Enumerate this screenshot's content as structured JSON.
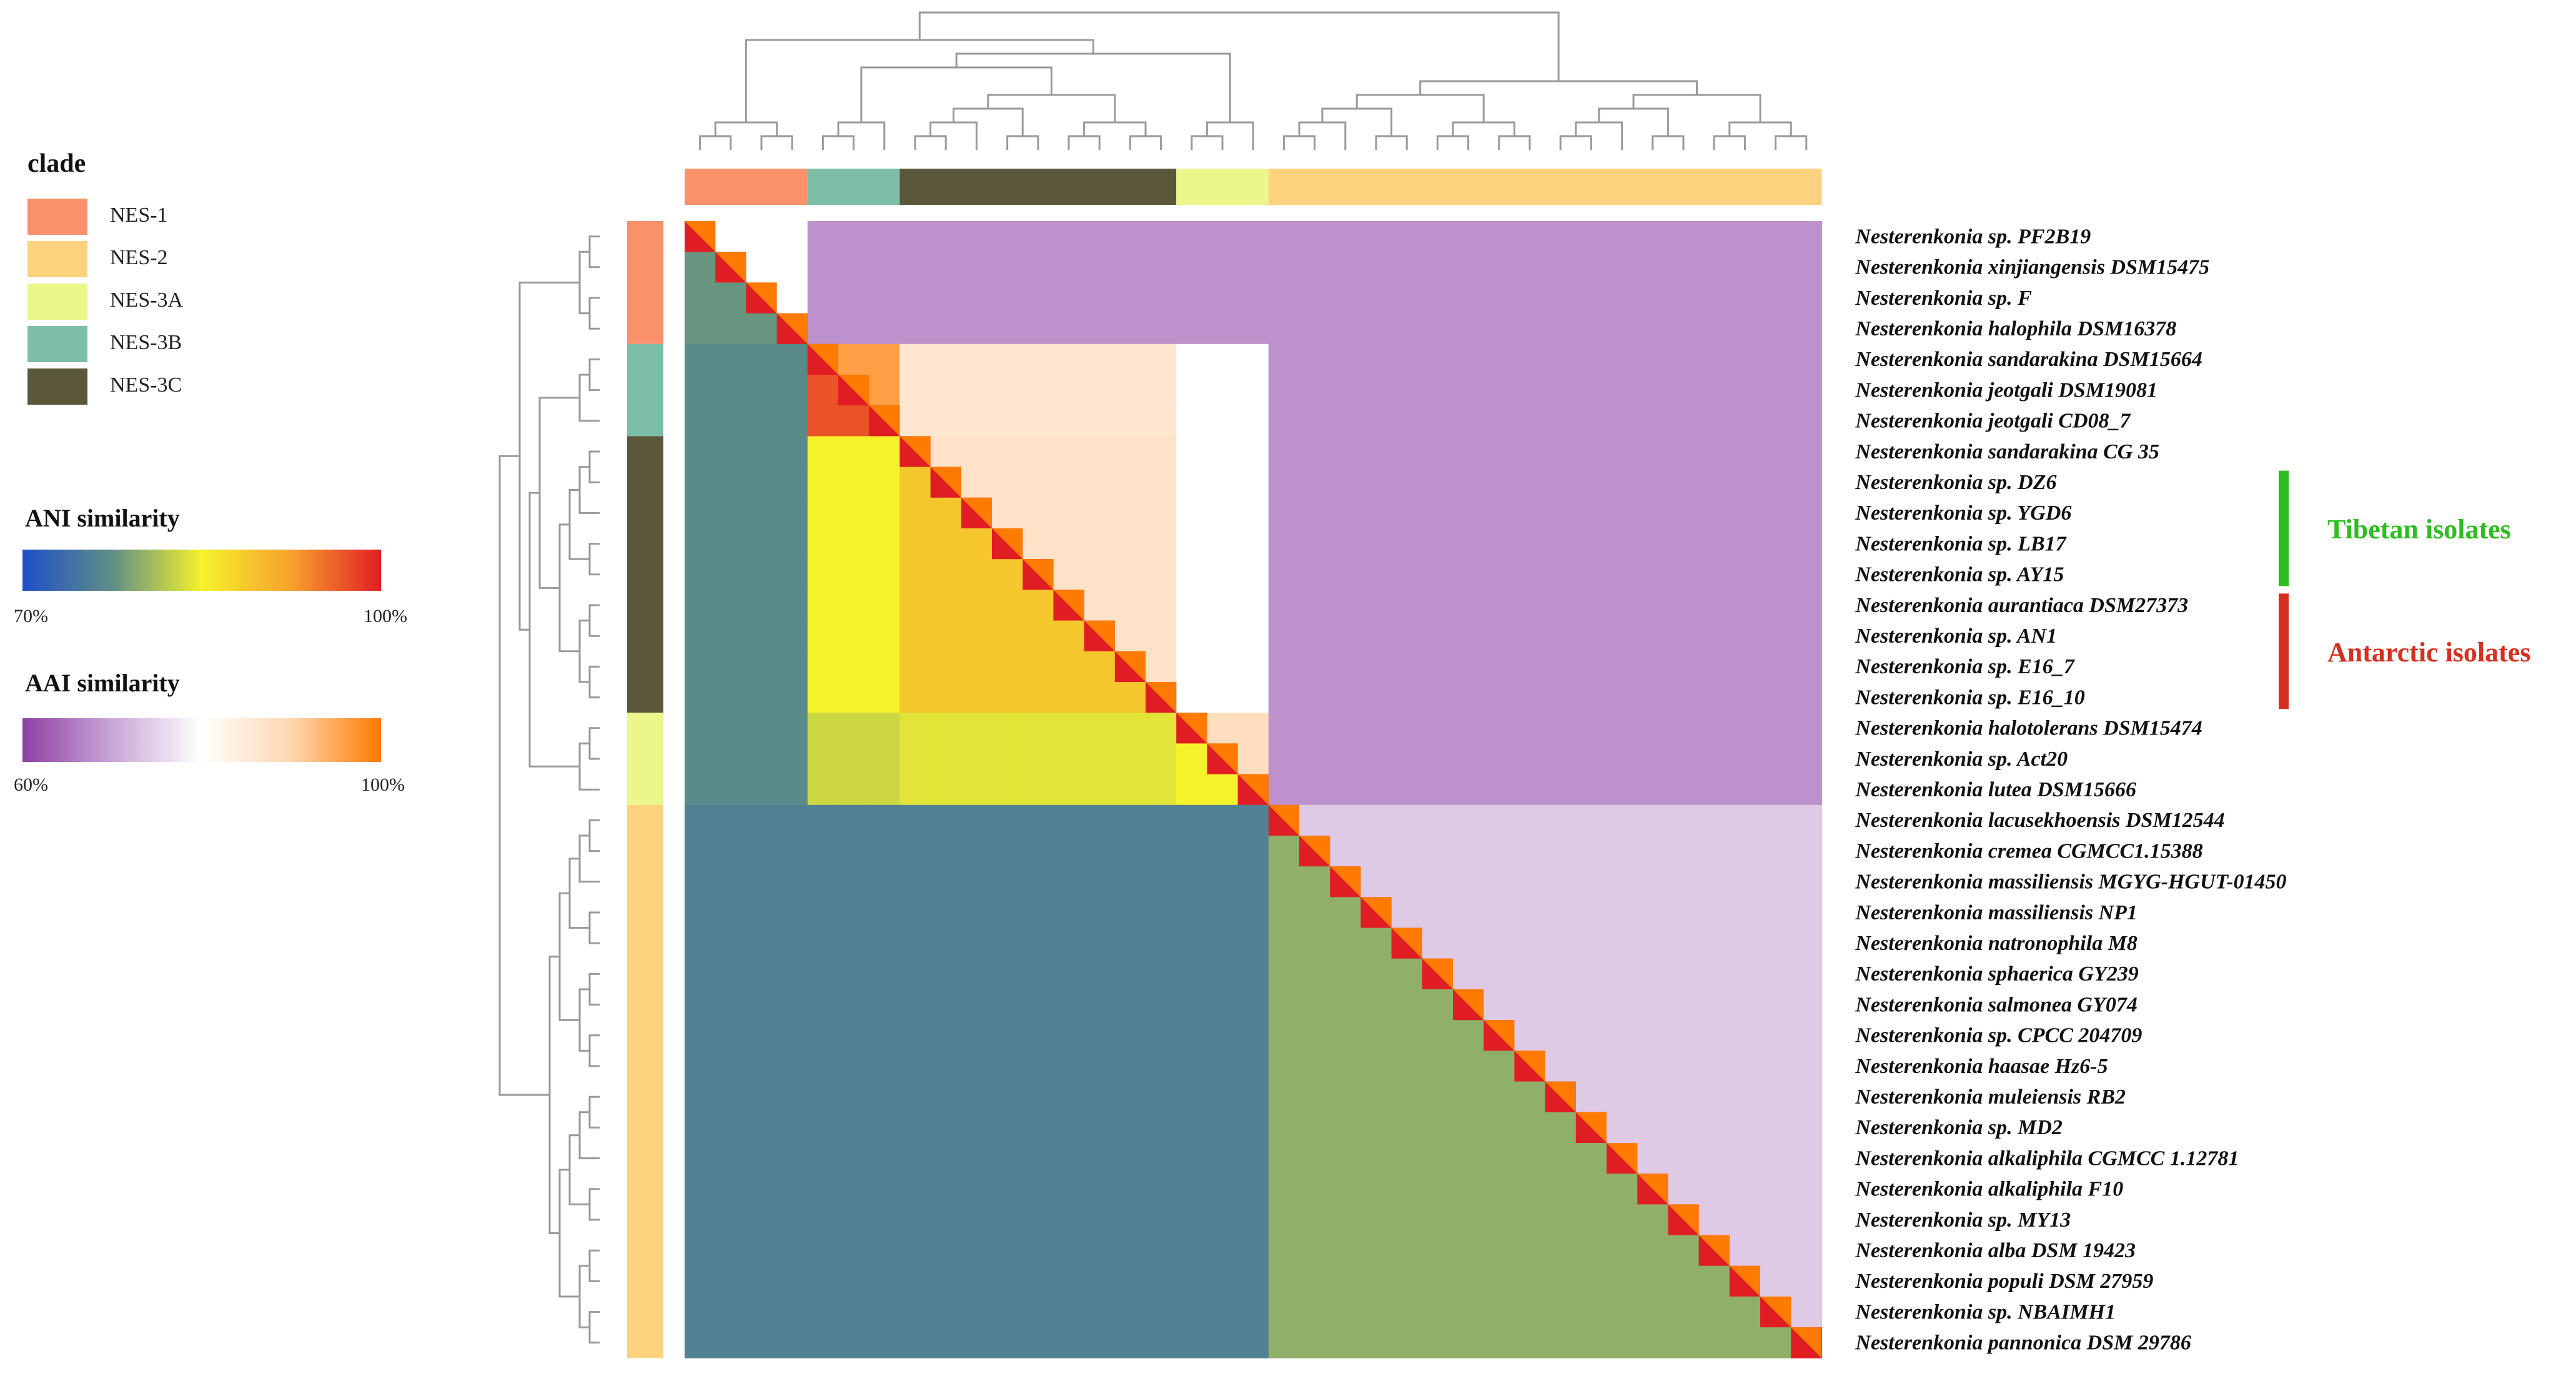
{
  "chart_data": {
    "type": "heatmap",
    "legend": {
      "clade": {
        "title": "clade",
        "items": [
          {
            "label": "NES-1",
            "color": "#F9916A"
          },
          {
            "label": "NES-2",
            "color": "#FDD27E"
          },
          {
            "label": "NES-3A",
            "color": "#EBF78A"
          },
          {
            "label": "NES-3B",
            "color": "#7CBFA6"
          },
          {
            "label": "NES-3C",
            "color": "#5A573B"
          }
        ]
      },
      "ani": {
        "title": "ANI similarity",
        "min_label": "70%",
        "max_label": "100%",
        "range": [
          70,
          100
        ],
        "colors": [
          "#1E4FC8",
          "#5E8E86",
          "#F5F22B",
          "#F7A12C",
          "#E11D24"
        ]
      },
      "aai": {
        "title": "AAI similarity",
        "min_label": "60%",
        "max_label": "100%",
        "range": [
          60,
          100
        ],
        "colors": [
          "#8E3FA3",
          "#C9A6D6",
          "#FFFFFF",
          "#FFD6B0",
          "#FF7A00"
        ]
      }
    },
    "strains": [
      "Nesterenkonia sp. PF2B19",
      "Nesterenkonia xinjiangensis DSM15475",
      "Nesterenkonia sp. F",
      "Nesterenkonia halophila DSM16378",
      "Nesterenkonia sandarakina DSM15664",
      "Nesterenkonia jeotgali DSM19081",
      "Nesterenkonia jeotgali CD08_7",
      "Nesterenkonia sandarakina CG 35",
      "Nesterenkonia sp. DZ6",
      "Nesterenkonia sp. YGD6",
      "Nesterenkonia sp. LB17",
      "Nesterenkonia sp. AY15",
      "Nesterenkonia aurantiaca DSM27373",
      "Nesterenkonia sp. AN1",
      "Nesterenkonia sp. E16_7",
      "Nesterenkonia sp. E16_10",
      "Nesterenkonia halotolerans DSM15474",
      "Nesterenkonia sp. Act20",
      "Nesterenkonia lutea DSM15666",
      "Nesterenkonia lacusekhoensis DSM12544",
      "Nesterenkonia cremea CGMCC1.15388",
      "Nesterenkonia massiliensis MGYG-HGUT-01450",
      "Nesterenkonia massiliensis NP1",
      "Nesterenkonia natronophila M8",
      "Nesterenkonia sphaerica GY239",
      "Nesterenkonia salmonea GY074",
      "Nesterenkonia sp. CPCC 204709",
      "Nesterenkonia haasae Hz6-5",
      "Nesterenkonia muleiensis RB2",
      "Nesterenkonia sp. MD2",
      "Nesterenkonia alkaliphila CGMCC 1.12781",
      "Nesterenkonia alkaliphila F10",
      "Nesterenkonia sp. MY13",
      "Nesterenkonia alba DSM 19423",
      "Nesterenkonia populi DSM 27959",
      "Nesterenkonia sp. NBAIMH1",
      "Nesterenkonia pannonica DSM 29786"
    ],
    "clade_of_strain": [
      "NES-1",
      "NES-1",
      "NES-1",
      "NES-1",
      "NES-3B",
      "NES-3B",
      "NES-3B",
      "NES-3C",
      "NES-3C",
      "NES-3C",
      "NES-3C",
      "NES-3C",
      "NES-3C",
      "NES-3C",
      "NES-3C",
      "NES-3C",
      "NES-3A",
      "NES-3A",
      "NES-3A",
      "NES-2",
      "NES-2",
      "NES-2",
      "NES-2",
      "NES-2",
      "NES-2",
      "NES-2",
      "NES-2",
      "NES-2",
      "NES-2",
      "NES-2",
      "NES-2",
      "NES-2",
      "NES-2",
      "NES-2",
      "NES-2",
      "NES-2",
      "NES-2"
    ],
    "blocks": [
      {
        "clade": "NES-1",
        "start": 0,
        "end": 3,
        "ani_within": 78,
        "aai_within": 80
      },
      {
        "clade": "NES-3B",
        "start": 4,
        "end": 6,
        "ani_within": 97,
        "aai_within": 96
      },
      {
        "clade": "NES-3C",
        "start": 7,
        "end": 15,
        "ani_within": 89,
        "aai_within": 87
      },
      {
        "clade": "NES-3A",
        "start": 16,
        "end": 18,
        "ani_within": 85,
        "aai_within": 88
      },
      {
        "clade": "NES-2",
        "start": 19,
        "end": 36,
        "ani_within": 80,
        "aai_within": 74
      }
    ],
    "notes": {
      "upper_triangle": "AAI similarity",
      "lower_triangle": "ANI similarity"
    },
    "annotations": [
      {
        "label": "Tibetan isolates",
        "from": 8,
        "to": 11,
        "color": "#2DBF1F"
      },
      {
        "label": "Antarctic isolates",
        "from": 12,
        "to": 15,
        "color": "#D6301E"
      }
    ]
  }
}
